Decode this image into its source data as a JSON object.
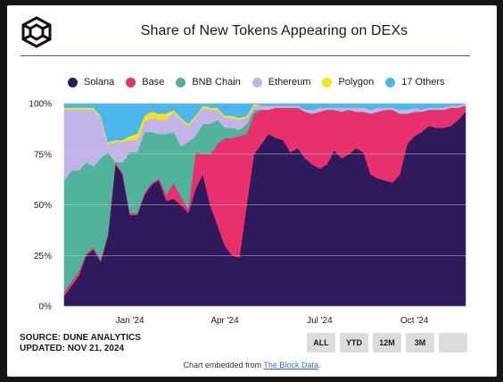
{
  "title": "Share of New Tokens Appearing on DEXs",
  "footer": {
    "source": "SOURCE: DUNE ANALYTICS",
    "updated": "UPDATED: NOV 21, 2024",
    "embed_prefix": "Chart embedded from ",
    "embed_link": "The Block Data",
    "embed_suffix": "."
  },
  "range_buttons": [
    "ALL",
    "YTD",
    "12M",
    "3M",
    ""
  ],
  "colors": {
    "accent_rule": "#7a3a96",
    "gridline": "#c9c9c9"
  },
  "chart_data": {
    "type": "area",
    "stacked": true,
    "normalized": true,
    "title": "Share of New Tokens Appearing on DEXs",
    "xlabel": "",
    "ylabel": "",
    "ylim": [
      0,
      100
    ],
    "y_ticks": [
      "0%",
      "25%",
      "50%",
      "75%",
      "100%"
    ],
    "x_ticks": [
      "Jan '24",
      "Apr '24",
      "Jul '24",
      "Oct '24"
    ],
    "x_tick_index": [
      9,
      22,
      35,
      48
    ],
    "x_count": 56,
    "grid": "horizontal",
    "legend_position": "top",
    "series": [
      {
        "name": "Solana",
        "color": "#2e1a5c",
        "values": [
          5,
          10,
          15,
          25,
          28,
          22,
          35,
          70,
          65,
          45,
          45,
          55,
          60,
          62,
          52,
          53,
          50,
          46,
          58,
          65,
          50,
          40,
          30,
          25,
          24,
          50,
          75,
          80,
          85,
          83,
          82,
          76,
          78,
          73,
          70,
          68,
          70,
          77,
          73,
          75,
          78,
          76,
          65,
          63,
          62,
          61,
          65,
          80,
          84,
          86,
          89,
          88,
          88,
          89,
          92,
          96
        ]
      },
      {
        "name": "Base",
        "color": "#e8306c",
        "values": [
          2,
          2,
          2,
          1,
          1,
          1,
          1,
          1,
          1,
          1,
          1,
          1,
          1,
          1,
          3,
          8,
          4,
          2,
          18,
          10,
          25,
          40,
          53,
          58,
          60,
          35,
          20,
          17,
          12,
          15,
          16,
          22,
          20,
          23,
          25,
          28,
          27,
          20,
          23,
          22,
          18,
          20,
          30,
          33,
          35,
          36,
          30,
          15,
          12,
          10,
          8,
          9,
          9,
          9,
          6,
          3
        ]
      },
      {
        "name": "BNB Chain",
        "color": "#52b39b",
        "values": [
          55,
          55,
          50,
          45,
          40,
          50,
          40,
          0,
          5,
          30,
          30,
          30,
          25,
          22,
          30,
          25,
          25,
          33,
          8,
          15,
          15,
          12,
          5,
          5,
          3,
          5,
          2,
          0,
          0,
          0,
          0,
          0,
          0,
          0,
          0,
          0,
          0,
          0,
          0,
          0,
          0,
          0,
          0,
          0,
          0,
          0,
          0,
          0,
          0,
          0,
          0,
          0,
          0,
          0,
          0,
          0
        ]
      },
      {
        "name": "Ethereum",
        "color": "#c2b4e8",
        "values": [
          35,
          30,
          30,
          26,
          28,
          20,
          4,
          10,
          10,
          6,
          6,
          5,
          7,
          7,
          7,
          10,
          13,
          8,
          9,
          8,
          7,
          5,
          5,
          5,
          5,
          3,
          2,
          2,
          2,
          1,
          1,
          1,
          1,
          1,
          2,
          2,
          1,
          1,
          2,
          1,
          2,
          2,
          2,
          2,
          1,
          1,
          2,
          2,
          2,
          1,
          1,
          1,
          1,
          1,
          1,
          1
        ]
      },
      {
        "name": "Polygon",
        "color": "#f2e51c",
        "values": [
          1,
          1,
          1,
          1,
          1,
          1,
          1,
          1,
          1,
          2,
          3,
          3,
          3,
          3,
          3,
          1,
          1,
          1,
          1,
          1,
          1,
          1,
          1,
          1,
          1,
          1,
          1,
          0,
          0,
          0,
          0,
          0,
          0,
          0,
          0,
          0,
          0,
          0,
          0,
          0,
          0,
          0,
          0,
          0,
          0,
          0,
          0,
          0,
          0,
          0,
          0,
          0,
          0,
          0,
          0,
          0
        ]
      },
      {
        "name": "17 Others",
        "color": "#4ab6ec",
        "values": [
          2,
          2,
          2,
          2,
          2,
          6,
          19,
          18,
          18,
          16,
          15,
          6,
          4,
          5,
          5,
          3,
          7,
          10,
          6,
          1,
          2,
          2,
          6,
          6,
          7,
          6,
          0,
          1,
          1,
          1,
          1,
          1,
          1,
          3,
          3,
          2,
          2,
          2,
          2,
          2,
          2,
          2,
          3,
          2,
          2,
          2,
          3,
          3,
          2,
          3,
          2,
          2,
          2,
          1,
          1,
          0
        ]
      }
    ]
  }
}
